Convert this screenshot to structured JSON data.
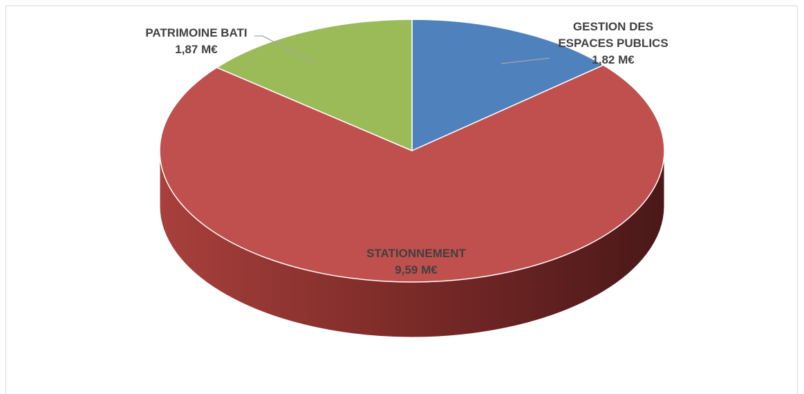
{
  "chart_data": {
    "type": "pie",
    "title": "",
    "unit": "M€",
    "slices": [
      {
        "label": [
          "GESTION DES",
          "ESPACES PUBLICS"
        ],
        "value": 1.82,
        "value_label": "1,82 M€",
        "color": "#4f81bd"
      },
      {
        "label": [
          "STATIONNEMENT"
        ],
        "value": 9.59,
        "value_label": "9,59 M€",
        "color": "#c0504d"
      },
      {
        "label": [
          "PATRIMOINE BATI"
        ],
        "value": 1.87,
        "value_label": "1,87 M€",
        "color": "#9bbb59"
      }
    ],
    "legend": false,
    "style": "3d-pie"
  }
}
